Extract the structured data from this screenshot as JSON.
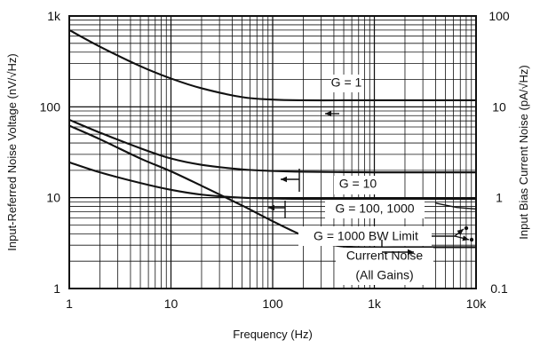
{
  "chart_data": {
    "type": "line",
    "x_scale": "log",
    "y_scale": "log",
    "y2_scale": "log",
    "xlim": [
      1,
      10000
    ],
    "ylim": [
      1,
      1000
    ],
    "y2lim": [
      0.1,
      100
    ],
    "x_ticks": [
      {
        "value": 1,
        "label": "1"
      },
      {
        "value": 10,
        "label": "10"
      },
      {
        "value": 100,
        "label": "100"
      },
      {
        "value": 1000,
        "label": "1k"
      },
      {
        "value": 10000,
        "label": "10k"
      }
    ],
    "y_ticks": [
      {
        "value": 1,
        "label": "1"
      },
      {
        "value": 10,
        "label": "10"
      },
      {
        "value": 100,
        "label": "100"
      },
      {
        "value": 1000,
        "label": "1k"
      }
    ],
    "y2_ticks": [
      {
        "value": 0.1,
        "label": "0.1"
      },
      {
        "value": 1,
        "label": "1"
      },
      {
        "value": 10,
        "label": "10"
      },
      {
        "value": 100,
        "label": "100"
      }
    ],
    "xlabel": "Frequency (Hz)",
    "ylabel": "Input-Referred Noise Voltage (nV/√Hz)",
    "y2label": "Input Bias Current Noise (pA/√Hz)",
    "grid": true,
    "series": [
      {
        "name": "G = 1",
        "axis": "left",
        "x": [
          1,
          2,
          5,
          10,
          20,
          50,
          100,
          200,
          500,
          1000,
          2000,
          5000,
          10000
        ],
        "y": [
          700,
          460,
          280,
          205,
          160,
          128,
          120,
          118,
          118,
          118,
          118,
          118,
          118
        ]
      },
      {
        "name": "G = 10",
        "axis": "left",
        "x": [
          1,
          2,
          5,
          10,
          20,
          50,
          100,
          200,
          500,
          1000,
          2000,
          5000,
          10000
        ],
        "y": [
          72,
          52,
          35,
          27,
          23,
          20.5,
          19.7,
          19.3,
          19.1,
          19,
          19,
          19,
          19
        ]
      },
      {
        "name": "G = 100, 1000",
        "axis": "left",
        "x": [
          1,
          2,
          5,
          10,
          20,
          50,
          100,
          200,
          500,
          1000,
          2000,
          5000,
          10000
        ],
        "y": [
          24.5,
          19,
          14.5,
          12.2,
          10.8,
          10,
          9.8,
          9.7,
          9.7,
          9.7,
          9.7,
          9.7,
          9.7
        ]
      },
      {
        "name": "G = 1000 BW Limit",
        "axis": "left",
        "x": [
          4000,
          6500,
          10000
        ],
        "y": [
          8.7,
          7.8,
          7.5
        ]
      },
      {
        "name": "Current Noise",
        "axis": "right",
        "x": [
          1,
          2,
          5,
          10,
          20,
          50,
          100,
          200,
          300,
          500,
          1000,
          2000,
          5000,
          10000
        ],
        "y": [
          6.2,
          4.4,
          2.7,
          1.95,
          1.35,
          0.82,
          0.55,
          0.38,
          0.32,
          0.29,
          0.285,
          0.285,
          0.285,
          0.285
        ]
      }
    ],
    "annotations": [
      {
        "id": "g1",
        "text": "G = 1"
      },
      {
        "id": "g10",
        "text": "G = 10"
      },
      {
        "id": "g100",
        "text": "G = 100, 1000"
      },
      {
        "id": "bw",
        "text": "G = 1000 BW Limit"
      },
      {
        "id": "current1",
        "text": "Current Noise"
      },
      {
        "id": "current2",
        "text": "(All Gains)"
      }
    ]
  }
}
